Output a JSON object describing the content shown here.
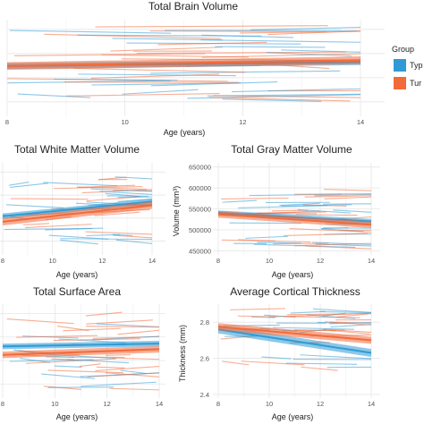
{
  "colors": {
    "typical": "#2f9bd6",
    "turner": "#f26a3a",
    "panel_bg": "#ffffff",
    "grid": "#e6e6e6"
  },
  "legend": {
    "title": "Group",
    "items": [
      "Typ",
      "Tur"
    ]
  },
  "chart_data": [
    {
      "id": "tbv",
      "type": "line",
      "title": "Total Brain Volume",
      "xlabel": "Age (years)",
      "ylabel": "",
      "xlim": [
        8,
        14
      ],
      "ylim": [
        0,
        1
      ],
      "x_ticks": [
        8,
        10,
        12,
        14
      ],
      "y_ticks": [],
      "series": [
        {
          "group": "typical",
          "x": [
            8,
            14
          ],
          "y": [
            0.52,
            0.56
          ],
          "band": 0.03
        },
        {
          "group": "turner",
          "x": [
            8,
            14
          ],
          "y": [
            0.52,
            0.58
          ],
          "band": 0.04
        }
      ],
      "noise_center": 0.55,
      "noise_spread": 0.38
    },
    {
      "id": "wm",
      "type": "line",
      "title": "Total White Matter Volume",
      "xlabel": "Age (years)",
      "ylabel": "",
      "xlim": [
        8,
        14
      ],
      "ylim": [
        0,
        1
      ],
      "x_ticks": [
        8,
        10,
        12,
        14
      ],
      "y_ticks": [],
      "series": [
        {
          "group": "typical",
          "x": [
            8,
            14
          ],
          "y": [
            0.42,
            0.58
          ],
          "band": 0.03
        },
        {
          "group": "turner",
          "x": [
            8,
            14
          ],
          "y": [
            0.36,
            0.54
          ],
          "band": 0.04
        }
      ],
      "noise_center": 0.5,
      "noise_spread": 0.38
    },
    {
      "id": "gm",
      "type": "line",
      "title": "Total Gray Matter Volume",
      "xlabel": "Age (years)",
      "ylabel": "Volume (mm³)",
      "xlim": [
        8,
        14
      ],
      "ylim": [
        440000,
        660000
      ],
      "x_ticks": [
        8,
        10,
        12,
        14
      ],
      "y_ticks": [
        450000,
        500000,
        550000,
        600000,
        650000
      ],
      "series": [
        {
          "group": "typical",
          "x": [
            8,
            14
          ],
          "y": [
            540000,
            520000
          ],
          "band": 6000
        },
        {
          "group": "turner",
          "x": [
            8,
            14
          ],
          "y": [
            537000,
            512000
          ],
          "band": 8000
        }
      ],
      "noise_center": 530000,
      "noise_spread": 70000
    },
    {
      "id": "sa",
      "type": "line",
      "title": "Total Surface Area",
      "xlabel": "Age (years)",
      "ylabel": "",
      "xlim": [
        8,
        14
      ],
      "ylim": [
        0,
        1
      ],
      "x_ticks": [
        8,
        10,
        12,
        14
      ],
      "y_ticks": [],
      "series": [
        {
          "group": "typical",
          "x": [
            8,
            14
          ],
          "y": [
            0.55,
            0.58
          ],
          "band": 0.03
        },
        {
          "group": "turner",
          "x": [
            8,
            14
          ],
          "y": [
            0.46,
            0.52
          ],
          "band": 0.035
        }
      ],
      "noise_center": 0.5,
      "noise_spread": 0.4
    },
    {
      "id": "ct",
      "type": "line",
      "title": "Average Cortical Thickness",
      "xlabel": "Age (years)",
      "ylabel": "Thickness (mm)",
      "xlim": [
        8,
        14
      ],
      "ylim": [
        2.38,
        2.9
      ],
      "x_ticks": [
        8,
        10,
        12,
        14
      ],
      "y_ticks": [
        2.4,
        2.6,
        2.8
      ],
      "series": [
        {
          "group": "typical",
          "x": [
            8,
            14
          ],
          "y": [
            2.76,
            2.63
          ],
          "band": 0.022
        },
        {
          "group": "turner",
          "x": [
            8,
            14
          ],
          "y": [
            2.775,
            2.7
          ],
          "band": 0.02
        }
      ],
      "noise_center": 2.72,
      "noise_spread": 0.17
    }
  ]
}
